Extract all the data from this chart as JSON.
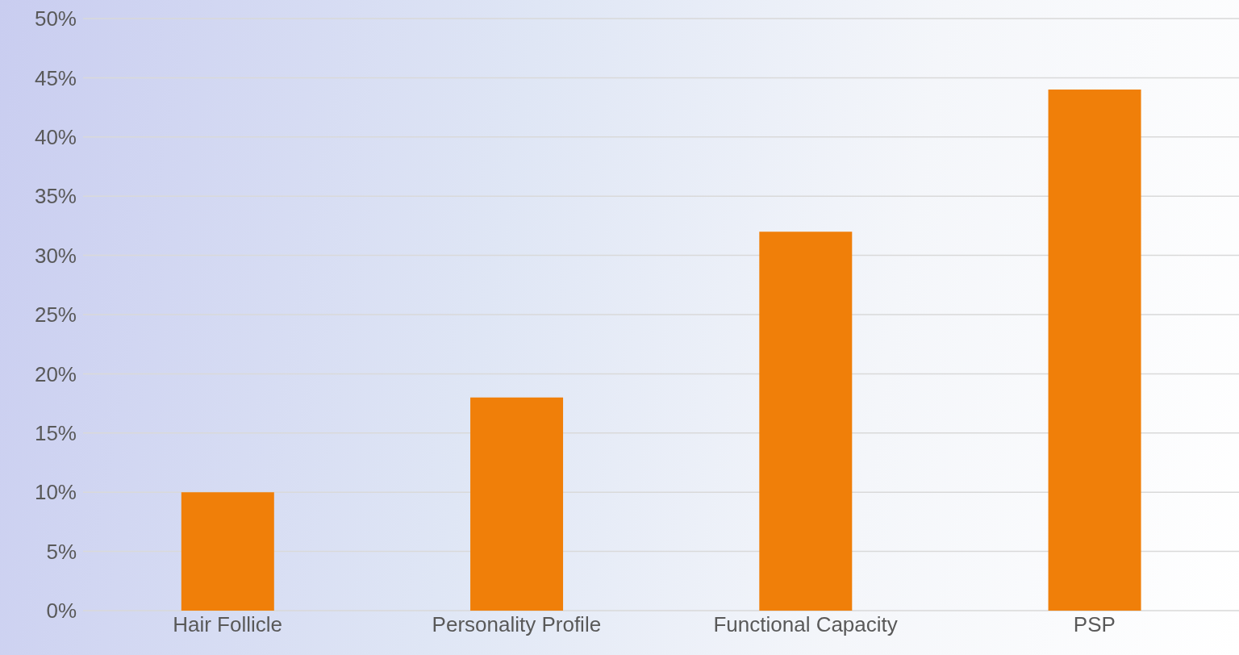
{
  "chart_data": {
    "type": "bar",
    "categories": [
      "Hair Follicle",
      "Personality Profile",
      "Functional Capacity",
      "PSP"
    ],
    "values": [
      10,
      18,
      32,
      44
    ],
    "color": "#f07f09",
    "ylim": [
      0,
      50
    ],
    "yticks": [
      {
        "value": 0,
        "label": "0%"
      },
      {
        "value": 5,
        "label": "5%"
      },
      {
        "value": 10,
        "label": "10%"
      },
      {
        "value": 15,
        "label": "15%"
      },
      {
        "value": 20,
        "label": "20%"
      },
      {
        "value": 25,
        "label": "25%"
      },
      {
        "value": 30,
        "label": "30%"
      },
      {
        "value": 35,
        "label": "35%"
      },
      {
        "value": 40,
        "label": "40%"
      },
      {
        "value": 45,
        "label": "45%"
      },
      {
        "value": 50,
        "label": "50%"
      }
    ],
    "grid": "y",
    "legend": false
  }
}
